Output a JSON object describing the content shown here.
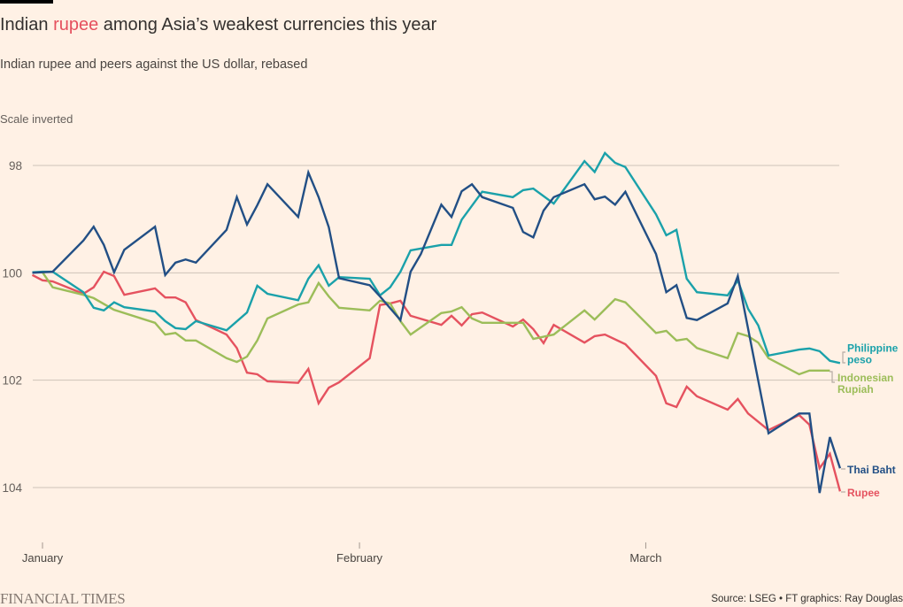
{
  "header": {
    "title_before": "Indian ",
    "title_highlight": "rupee",
    "title_after": " among Asia’s weakest currencies this year",
    "subtitle": "Indian rupee and peers against the US dollar, rebased",
    "note": "Scale inverted"
  },
  "colors": {
    "background": "#fff1e5",
    "title_highlight": "#e5505e"
  },
  "footer": {
    "logo_text": "FINANCIAL TIMES",
    "source": "Source: LSEG • FT graphics: Ray Douglas"
  },
  "chart_data": {
    "type": "line",
    "title": "Indian rupee among Asia’s weakest currencies this year",
    "subtitle": "Indian rupee and peers against the US dollar, rebased",
    "annotation": "Scale inverted",
    "xlabel": "",
    "ylabel": "",
    "x_unit": "days since 1 January",
    "xlim": [
      -1,
      78
    ],
    "ylim": [
      98,
      104
    ],
    "y_inverted": true,
    "grid": true,
    "legend": "direct labels at right end of each line",
    "y_ticks": [
      {
        "value": 98,
        "label": "98"
      },
      {
        "value": 100,
        "label": "100"
      },
      {
        "value": 102,
        "label": "102"
      },
      {
        "value": 104,
        "label": "104"
      }
    ],
    "x_ticks": [
      {
        "day": 0,
        "label": "January"
      },
      {
        "day": 31,
        "label": "February"
      },
      {
        "day": 59,
        "label": "March"
      }
    ],
    "series": [
      {
        "name": "Rupee",
        "label_lines": [
          "Rupee"
        ],
        "color": "#e5525f",
        "points": [
          [
            -1,
            100.04
          ],
          [
            0,
            100.14
          ],
          [
            1,
            100.16
          ],
          [
            4,
            100.39
          ],
          [
            5,
            100.27
          ],
          [
            6,
            99.98
          ],
          [
            7,
            100.06
          ],
          [
            8,
            100.41
          ],
          [
            11,
            100.29
          ],
          [
            12,
            100.46
          ],
          [
            13,
            100.46
          ],
          [
            14,
            100.55
          ],
          [
            15,
            100.88
          ],
          [
            18,
            101.15
          ],
          [
            19,
            101.4
          ],
          [
            20,
            101.86
          ],
          [
            21,
            101.89
          ],
          [
            22,
            102.02
          ],
          [
            25,
            102.05
          ],
          [
            26,
            101.79
          ],
          [
            27,
            102.43
          ],
          [
            28,
            102.14
          ],
          [
            29,
            102.04
          ],
          [
            32,
            101.59
          ],
          [
            33,
            100.6
          ],
          [
            34,
            100.57
          ],
          [
            35,
            100.52
          ],
          [
            36,
            100.8
          ],
          [
            39,
            100.97
          ],
          [
            40,
            100.8
          ],
          [
            41,
            100.98
          ],
          [
            42,
            100.77
          ],
          [
            43,
            100.74
          ],
          [
            46,
            101.0
          ],
          [
            47,
            100.87
          ],
          [
            48,
            101.05
          ],
          [
            49,
            101.31
          ],
          [
            50,
            100.97
          ],
          [
            53,
            101.3
          ],
          [
            54,
            101.18
          ],
          [
            55,
            101.15
          ],
          [
            57,
            101.33
          ],
          [
            60,
            101.92
          ],
          [
            61,
            102.43
          ],
          [
            62,
            102.5
          ],
          [
            63,
            102.12
          ],
          [
            64,
            102.3
          ],
          [
            67,
            102.55
          ],
          [
            68,
            102.35
          ],
          [
            69,
            102.62
          ],
          [
            71,
            102.93
          ],
          [
            74,
            102.65
          ],
          [
            75,
            102.83
          ],
          [
            76,
            103.64
          ],
          [
            77,
            103.37
          ],
          [
            78,
            104.07
          ]
        ]
      },
      {
        "name": "Indonesian Rupiah",
        "label_lines": [
          "Indonesian",
          "Rupiah"
        ],
        "color": "#9cbd59",
        "points": [
          [
            -1,
            99.99
          ],
          [
            0,
            99.99
          ],
          [
            1,
            100.27
          ],
          [
            4,
            100.41
          ],
          [
            5,
            100.47
          ],
          [
            7,
            100.69
          ],
          [
            11,
            100.93
          ],
          [
            12,
            101.15
          ],
          [
            13,
            101.12
          ],
          [
            14,
            101.26
          ],
          [
            15,
            101.26
          ],
          [
            18,
            101.59
          ],
          [
            19,
            101.66
          ],
          [
            20,
            101.56
          ],
          [
            21,
            101.26
          ],
          [
            22,
            100.85
          ],
          [
            25,
            100.59
          ],
          [
            26,
            100.55
          ],
          [
            27,
            100.19
          ],
          [
            28,
            100.44
          ],
          [
            29,
            100.65
          ],
          [
            32,
            100.7
          ],
          [
            33,
            100.52
          ],
          [
            34,
            100.57
          ],
          [
            35,
            100.9
          ],
          [
            36,
            101.15
          ],
          [
            39,
            100.75
          ],
          [
            40,
            100.72
          ],
          [
            41,
            100.64
          ],
          [
            42,
            100.85
          ],
          [
            43,
            100.93
          ],
          [
            47,
            100.93
          ],
          [
            48,
            101.23
          ],
          [
            50,
            101.15
          ],
          [
            53,
            100.7
          ],
          [
            54,
            100.87
          ],
          [
            56,
            100.49
          ],
          [
            57,
            100.55
          ],
          [
            60,
            101.12
          ],
          [
            61,
            101.08
          ],
          [
            62,
            101.26
          ],
          [
            63,
            101.23
          ],
          [
            64,
            101.4
          ],
          [
            67,
            101.59
          ],
          [
            68,
            101.12
          ],
          [
            69,
            101.18
          ],
          [
            70,
            101.3
          ],
          [
            71,
            101.59
          ],
          [
            74,
            101.89
          ],
          [
            75,
            101.82
          ],
          [
            77,
            101.82
          ]
        ]
      },
      {
        "name": "Philippine peso",
        "label_lines": [
          "Philippine",
          "peso"
        ],
        "color": "#1aa1aa",
        "points": [
          [
            -1,
            99.99
          ],
          [
            0,
            99.98
          ],
          [
            1,
            99.98
          ],
          [
            4,
            100.36
          ],
          [
            5,
            100.65
          ],
          [
            6,
            100.7
          ],
          [
            7,
            100.55
          ],
          [
            8,
            100.64
          ],
          [
            11,
            100.72
          ],
          [
            12,
            100.9
          ],
          [
            13,
            101.03
          ],
          [
            14,
            101.05
          ],
          [
            15,
            100.9
          ],
          [
            18,
            101.07
          ],
          [
            20,
            100.74
          ],
          [
            21,
            100.24
          ],
          [
            22,
            100.39
          ],
          [
            25,
            100.51
          ],
          [
            26,
            100.11
          ],
          [
            27,
            99.86
          ],
          [
            28,
            100.24
          ],
          [
            29,
            100.08
          ],
          [
            32,
            100.11
          ],
          [
            33,
            100.42
          ],
          [
            34,
            100.27
          ],
          [
            35,
            99.98
          ],
          [
            36,
            99.58
          ],
          [
            39,
            99.48
          ],
          [
            40,
            99.48
          ],
          [
            41,
            99.01
          ],
          [
            43,
            98.49
          ],
          [
            46,
            98.59
          ],
          [
            47,
            98.46
          ],
          [
            48,
            98.43
          ],
          [
            50,
            98.71
          ],
          [
            53,
            97.92
          ],
          [
            54,
            98.12
          ],
          [
            55,
            97.77
          ],
          [
            56,
            97.95
          ],
          [
            57,
            98.03
          ],
          [
            60,
            98.91
          ],
          [
            61,
            99.3
          ],
          [
            62,
            99.2
          ],
          [
            63,
            100.11
          ],
          [
            64,
            100.36
          ],
          [
            67,
            100.42
          ],
          [
            68,
            100.14
          ],
          [
            69,
            100.67
          ],
          [
            70,
            100.98
          ],
          [
            71,
            101.54
          ],
          [
            74,
            101.43
          ],
          [
            75,
            101.41
          ],
          [
            76,
            101.46
          ],
          [
            77,
            101.64
          ],
          [
            78,
            101.68
          ]
        ]
      },
      {
        "name": "Thai Baht",
        "label_lines": [
          "Thai Baht"
        ],
        "color": "#224f85",
        "points": [
          [
            -1,
            100.0
          ],
          [
            0,
            99.99
          ],
          [
            1,
            99.98
          ],
          [
            4,
            99.4
          ],
          [
            5,
            99.14
          ],
          [
            6,
            99.48
          ],
          [
            7,
            99.99
          ],
          [
            8,
            99.57
          ],
          [
            11,
            99.14
          ],
          [
            12,
            100.04
          ],
          [
            13,
            99.81
          ],
          [
            14,
            99.75
          ],
          [
            15,
            99.81
          ],
          [
            18,
            99.2
          ],
          [
            19,
            98.59
          ],
          [
            20,
            99.1
          ],
          [
            21,
            98.74
          ],
          [
            22,
            98.35
          ],
          [
            25,
            98.96
          ],
          [
            26,
            98.13
          ],
          [
            27,
            98.59
          ],
          [
            28,
            99.15
          ],
          [
            29,
            100.1
          ],
          [
            32,
            100.23
          ],
          [
            33,
            100.44
          ],
          [
            35,
            100.88
          ],
          [
            36,
            99.98
          ],
          [
            37,
            99.65
          ],
          [
            39,
            98.73
          ],
          [
            40,
            98.96
          ],
          [
            41,
            98.48
          ],
          [
            42,
            98.35
          ],
          [
            43,
            98.59
          ],
          [
            46,
            98.79
          ],
          [
            47,
            99.24
          ],
          [
            48,
            99.34
          ],
          [
            49,
            98.84
          ],
          [
            50,
            98.59
          ],
          [
            53,
            98.35
          ],
          [
            54,
            98.63
          ],
          [
            55,
            98.58
          ],
          [
            56,
            98.73
          ],
          [
            57,
            98.49
          ],
          [
            60,
            99.65
          ],
          [
            61,
            100.36
          ],
          [
            62,
            100.23
          ],
          [
            63,
            100.84
          ],
          [
            64,
            100.88
          ],
          [
            67,
            100.57
          ],
          [
            68,
            100.06
          ],
          [
            71,
            102.99
          ],
          [
            74,
            102.62
          ],
          [
            75,
            102.62
          ],
          [
            76,
            104.1
          ],
          [
            77,
            103.06
          ],
          [
            78,
            103.64
          ]
        ]
      }
    ]
  }
}
